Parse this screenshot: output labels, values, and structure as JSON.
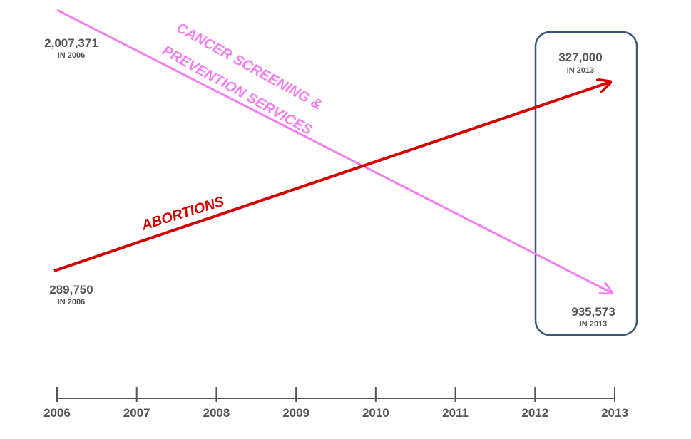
{
  "chart_data": {
    "type": "line",
    "x": [
      "2006",
      "2013"
    ],
    "xticks": [
      "2006",
      "2007",
      "2008",
      "2009",
      "2010",
      "2011",
      "2012",
      "2013"
    ],
    "title": "",
    "xlabel": "",
    "ylabel": "",
    "grid": false,
    "series": [
      {
        "name_lines": [
          "CANCER SCREENING &",
          "PREVENTION SERVICES"
        ],
        "color": "#f47ef0",
        "values": [
          2007371,
          935573
        ],
        "labels": [
          {
            "value": "2,007,371",
            "sub": "IN 2006"
          },
          {
            "value": "935,573",
            "sub": "IN 2013"
          }
        ]
      },
      {
        "name": "ABORTIONS",
        "color": "#d40000",
        "values": [
          289750,
          327000
        ],
        "labels": [
          {
            "value": "289,750",
            "sub": "IN 2006"
          },
          {
            "value": "327,000",
            "sub": "IN 2013"
          }
        ]
      }
    ],
    "highlight": {
      "range": "2012-2013",
      "color": "#3a5678"
    }
  }
}
